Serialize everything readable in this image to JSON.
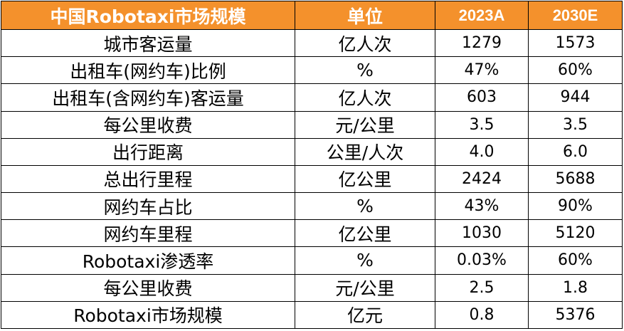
{
  "colors": {
    "header_bg": "#f4912c",
    "header_text": "#ffffff",
    "border": "#000000"
  },
  "table": {
    "headers": [
      "中国Robotaxi市场规模",
      "单位",
      "2023A",
      "2030E"
    ],
    "rows": [
      [
        "城市客运量",
        "亿人次",
        "1279",
        "1573"
      ],
      [
        "出租车(网约车)比例",
        "%",
        "47%",
        "60%"
      ],
      [
        "出租车(含网约车)客运量",
        "亿人次",
        "603",
        "944"
      ],
      [
        "每公里收费",
        "元/公里",
        "3.5",
        "3.5"
      ],
      [
        "出行距离",
        "公里/人次",
        "4.0",
        "6.0"
      ],
      [
        "总出行里程",
        "亿公里",
        "2424",
        "5688"
      ],
      [
        "网约车占比",
        "%",
        "43%",
        "90%"
      ],
      [
        "网约车里程",
        "亿公里",
        "1030",
        "5120"
      ],
      [
        "Robotaxi渗透率",
        "%",
        "0.03%",
        "60%"
      ],
      [
        "每公里收费",
        "元/公里",
        "2.5",
        "1.8"
      ],
      [
        "Robotaxi市场规模",
        "亿元",
        "0.8",
        "5376"
      ]
    ]
  }
}
